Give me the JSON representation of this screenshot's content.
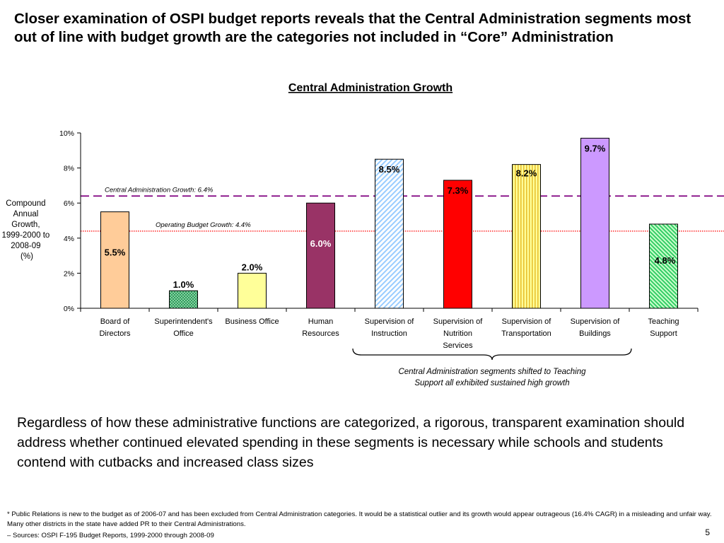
{
  "slide": {
    "headline": "Closer examination of OSPI budget reports reveals that the Central Administration segments most out of line with budget growth are the categories not included in “Core” Administration",
    "body_text": "Regardless of how these administrative functions are categorized, a rigorous, transparent examination should address whether continued elevated spending in these segments is necessary while schools and students contend with cutbacks and increased class sizes",
    "footnote": "* Public Relations is new to the budget as of 2006-07 and has been excluded from Central Administration categories. It would be a statistical outlier and its growth would appear outrageous (16.4% CAGR) in a misleading and unfair way. Many other districts in the state have added PR to their Central Administrations.",
    "source": "– Sources: OSPI F-195 Budget Reports, 1999-2000 through 2008-09",
    "page_number": "5"
  },
  "chart_data": {
    "type": "bar",
    "title": "Central Administration Growth",
    "ylabel_lines": [
      "Compound",
      "Annual",
      "Growth,",
      "1999-2000 to",
      "2008-09",
      "(%)"
    ],
    "ylim": [
      0,
      10
    ],
    "yticks": [
      0,
      2,
      4,
      6,
      8,
      10
    ],
    "ytick_labels": [
      "0%",
      "2%",
      "4%",
      "6%",
      "8%",
      "10%"
    ],
    "grid": false,
    "categories": [
      [
        "Board of",
        "Directors"
      ],
      [
        "Superintendent's",
        "Office"
      ],
      [
        "Business Office"
      ],
      [
        "Human",
        "Resources"
      ],
      [
        "Supervision of",
        "Instruction"
      ],
      [
        "Supervision of",
        "Nutrition",
        "Services"
      ],
      [
        "Supervision of",
        "Transportation"
      ],
      [
        "Supervision of",
        "Buildings"
      ],
      [
        "Teaching",
        "Support"
      ]
    ],
    "values": [
      5.5,
      1.0,
      2.0,
      6.0,
      8.5,
      7.3,
      8.2,
      9.7,
      4.8
    ],
    "data_labels": [
      "5.5%",
      "1.0%",
      "2.0%",
      "6.0%",
      "8.5%",
      "7.3%",
      "8.2%",
      "9.7%",
      "4.8%"
    ],
    "bar_styles": [
      {
        "fill": "#ffcc99",
        "pattern": "solid",
        "label_color": "#000000",
        "label_pos": "inside"
      },
      {
        "fill": "#2e9e5b",
        "pattern": "dots",
        "label_color": "#000000",
        "label_pos": "above"
      },
      {
        "fill": "#ffff99",
        "pattern": "solid",
        "label_color": "#000000",
        "label_pos": "above"
      },
      {
        "fill": "#993366",
        "pattern": "solid",
        "label_color": "#ffffff",
        "label_pos": "inside"
      },
      {
        "fill": "#99ccff",
        "pattern": "diagonal",
        "label_color": "#000000",
        "label_pos": "inside"
      },
      {
        "fill": "#ff0000",
        "pattern": "solid",
        "label_color": "#000000",
        "label_pos": "inside"
      },
      {
        "fill": "#f2d640",
        "pattern": "vertical",
        "label_color": "#000000",
        "label_pos": "below-top"
      },
      {
        "fill": "#cc99ff",
        "pattern": "solid",
        "label_color": "#000000",
        "label_pos": "inside"
      },
      {
        "fill": "#33cc66",
        "pattern": "diagonal-dense",
        "label_color": "#000000",
        "label_pos": "inside-right"
      }
    ],
    "reference_lines": [
      {
        "label": "Central Administration Growth: 6.4%",
        "value": 6.4,
        "color": "#800080",
        "style": "dashed"
      },
      {
        "label": "Operating Budget Growth: 4.4%",
        "value": 4.4,
        "color": "#ff0000",
        "style": "dotted"
      }
    ],
    "annotation": {
      "text_lines": [
        "Central Administration segments shifted to Teaching",
        "Support all exhibited sustained high growth"
      ],
      "brace_from": 4,
      "brace_to": 7
    }
  }
}
